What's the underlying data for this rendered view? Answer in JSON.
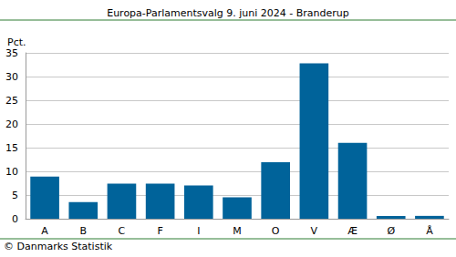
{
  "chart_data": {
    "type": "bar",
    "title": "Europa-Parlamentsvalg 9. juni 2024 - Branderup",
    "y_label": "Pct.",
    "annotation": "© Danmarks Statistik",
    "categories": [
      "A",
      "B",
      "C",
      "F",
      "I",
      "M",
      "O",
      "V",
      "Æ",
      "Ø",
      "Å"
    ],
    "values": [
      8.9,
      3.5,
      7.4,
      7.4,
      7.0,
      4.5,
      11.9,
      32.8,
      16.0,
      0.6,
      0.6
    ],
    "color": "#00639a",
    "ylim": [
      0,
      35
    ],
    "yticks": [
      0,
      5,
      10,
      15,
      20,
      25,
      30,
      35
    ],
    "grid": true
  }
}
